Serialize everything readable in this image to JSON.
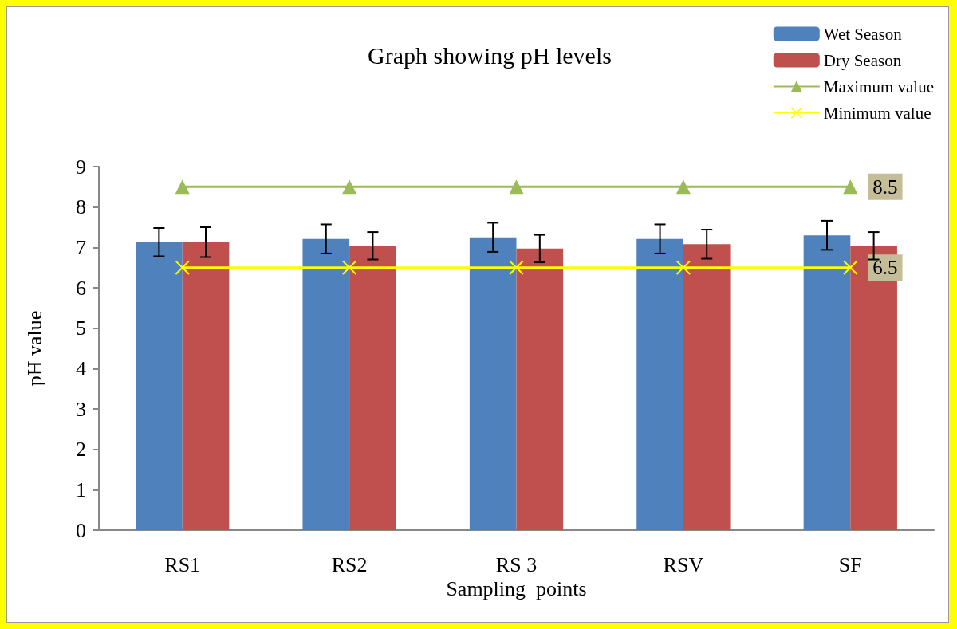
{
  "chart_data": {
    "type": "bar",
    "title": "Graph showing pH levels",
    "xlabel": "Sampling  points",
    "ylabel": "pH value",
    "categories": [
      "RS1",
      "RS2",
      "RS 3",
      "RSV",
      "SF"
    ],
    "series": [
      {
        "name": "Wet Season",
        "color": "#4f81bd",
        "values": [
          7.13,
          7.21,
          7.25,
          7.21,
          7.3
        ],
        "errors": [
          0.35,
          0.36,
          0.36,
          0.36,
          0.36
        ]
      },
      {
        "name": "Dry Season",
        "color": "#c0504d",
        "values": [
          7.13,
          7.04,
          6.97,
          7.08,
          7.04
        ],
        "errors": [
          0.37,
          0.34,
          0.34,
          0.36,
          0.34
        ]
      },
      {
        "name": "Maximum value",
        "type": "line",
        "color": "#9bbb59",
        "marker": "triangle",
        "values": [
          8.5,
          8.5,
          8.5,
          8.5,
          8.5
        ],
        "value_labels": [
          null,
          null,
          null,
          null,
          "8.5"
        ]
      },
      {
        "name": "Minimum value",
        "type": "line",
        "color": "#ffff00",
        "marker": "cross",
        "values": [
          6.5,
          6.5,
          6.5,
          6.5,
          6.5
        ],
        "value_labels": [
          null,
          null,
          null,
          null,
          "6.5"
        ]
      }
    ],
    "ylim": [
      0,
      9
    ],
    "yticks": [
      0,
      1,
      2,
      3,
      4,
      5,
      6,
      7,
      8,
      9
    ],
    "grid": false,
    "legend": "top right"
  }
}
